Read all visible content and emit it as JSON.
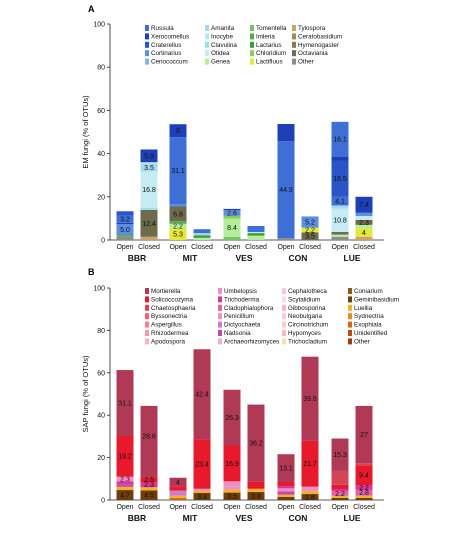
{
  "chart_data": [
    {
      "panel": "A",
      "type": "bar",
      "stacked": true,
      "ylabel": "EM fungi (% of OTUs)",
      "ylim": [
        0,
        100
      ],
      "yticks": [
        0,
        20,
        40,
        60,
        80,
        100
      ],
      "groups": [
        "BBR",
        "MIT",
        "VES",
        "CON",
        "LUE"
      ],
      "bar_categories": [
        "Open",
        "Closed"
      ],
      "legend": [
        {
          "name": "Russula",
          "color": "#3d6fd6"
        },
        {
          "name": "Amanita",
          "color": "#a8d8f0"
        },
        {
          "name": "Tomentella",
          "color": "#77c26a"
        },
        {
          "name": "Tylospora",
          "color": "#c9a56a"
        },
        {
          "name": "Xerocomellus",
          "color": "#1f3fb8"
        },
        {
          "name": "Inocybe",
          "color": "#b6e7f5"
        },
        {
          "name": "Imleria",
          "color": "#58a94e"
        },
        {
          "name": "Ceratobasidium",
          "color": "#a08a5a"
        },
        {
          "name": "Craterellus",
          "color": "#2a55c8"
        },
        {
          "name": "Clavulina",
          "color": "#9adfe8"
        },
        {
          "name": "Lactarius",
          "color": "#3e9a3a"
        },
        {
          "name": "Hymenogaster",
          "color": "#877a55"
        },
        {
          "name": "Cortinarius",
          "color": "#5a8ee0"
        },
        {
          "name": "Otidea",
          "color": "#c5ecf3"
        },
        {
          "name": "Chloridium",
          "color": "#86cc5e"
        },
        {
          "name": "Octaviania",
          "color": "#6e6a4c"
        },
        {
          "name": "Cenococcum",
          "color": "#7fb5e8"
        },
        {
          "name": "Genea",
          "color": "#b5ee9a"
        },
        {
          "name": "Lactifluus",
          "color": "#e3e83a"
        },
        {
          "name": "Other",
          "color": "#8c8c8c"
        }
      ],
      "bars": [
        {
          "group": "BBR",
          "category": "Open",
          "segments": [
            {
              "taxon": "Other",
              "value": 1.5
            },
            {
              "taxon": "Imleria",
              "value": 0.8
            },
            {
              "taxon": "Cortinarius",
              "value": 5.0,
              "label": "5.0"
            },
            {
              "taxon": "Xerocomellus",
              "value": 0.7
            },
            {
              "taxon": "Russula",
              "value": 3.2,
              "label": "3.2"
            },
            {
              "taxon": "Craterellus",
              "value": 2.1
            }
          ]
        },
        {
          "group": "BBR",
          "category": "Closed",
          "segments": [
            {
              "taxon": "Tylospora",
              "value": 1.5
            },
            {
              "taxon": "Octaviania",
              "value": 12.4,
              "label": "12.4"
            },
            {
              "taxon": "Clavulina",
              "value": 1.0
            },
            {
              "taxon": "Otidea",
              "value": 16.8,
              "label": "16.8"
            },
            {
              "taxon": "Amanita",
              "value": 3.5,
              "label": "3.5"
            },
            {
              "taxon": "Inocybe",
              "value": 0.8
            },
            {
              "taxon": "Xerocomellus",
              "value": 5.9,
              "label": "5.9"
            }
          ]
        },
        {
          "group": "MIT",
          "category": "Open",
          "segments": [
            {
              "taxon": "Lactifluus",
              "value": 5.3,
              "label": "5.3"
            },
            {
              "taxon": "Genea",
              "value": 2.2,
              "label": "2.2"
            },
            {
              "taxon": "Imleria",
              "value": 1.2
            },
            {
              "taxon": "Octaviania",
              "value": 6.8,
              "label": "6.8"
            },
            {
              "taxon": "Cortinarius",
              "value": 1.0
            },
            {
              "taxon": "Russula",
              "value": 31.1,
              "label": "31.1"
            },
            {
              "taxon": "Xerocomellus",
              "value": 6.0,
              "label": "6"
            }
          ]
        },
        {
          "group": "MIT",
          "category": "Closed",
          "segments": [
            {
              "taxon": "Genea",
              "value": 1.0
            },
            {
              "taxon": "Lactarius",
              "value": 1.2
            },
            {
              "taxon": "Clavulina",
              "value": 1.0
            },
            {
              "taxon": "Russula",
              "value": 1.8
            }
          ]
        },
        {
          "group": "VES",
          "category": "Open",
          "segments": [
            {
              "taxon": "Tomentella",
              "value": 1.5
            },
            {
              "taxon": "Genea",
              "value": 8.4,
              "label": "8.4"
            },
            {
              "taxon": "Chloridium",
              "value": 1.3
            },
            {
              "taxon": "Cortinarius",
              "value": 2.6,
              "label": "2.6"
            },
            {
              "taxon": "Xerocomellus",
              "value": 0.6
            }
          ]
        },
        {
          "group": "VES",
          "category": "Closed",
          "segments": [
            {
              "taxon": "Genea",
              "value": 2.0
            },
            {
              "taxon": "Lactarius",
              "value": 1.2
            },
            {
              "taxon": "Otidea",
              "value": 0.5
            },
            {
              "taxon": "Russula",
              "value": 2.8
            }
          ]
        },
        {
          "group": "CON",
          "category": "Open",
          "segments": [
            {
              "taxon": "Other",
              "value": 0.8
            },
            {
              "taxon": "Russula",
              "value": 44.9,
              "label": "44.9"
            },
            {
              "taxon": "Xerocomellus",
              "value": 8.0
            }
          ]
        },
        {
          "group": "CON",
          "category": "Closed",
          "segments": [
            {
              "taxon": "Octaviania",
              "value": 3.5,
              "label": "3.5"
            },
            {
              "taxon": "Lactifluus",
              "value": 2.2,
              "label": "2.2"
            },
            {
              "taxon": "Cortinarius",
              "value": 5.2,
              "label": "5.2"
            }
          ]
        },
        {
          "group": "LUE",
          "category": "Open",
          "segments": [
            {
              "taxon": "Other",
              "value": 1.5
            },
            {
              "taxon": "Genea",
              "value": 1.0
            },
            {
              "taxon": "Octaviania",
              "value": 1.2
            },
            {
              "taxon": "Otidea",
              "value": 10.8,
              "label": "10.8"
            },
            {
              "taxon": "Amanita",
              "value": 1.5
            },
            {
              "taxon": "Russula",
              "value": 4.1,
              "label": "4.1"
            },
            {
              "taxon": "Craterellus",
              "value": 16.5,
              "label": "16.5"
            },
            {
              "taxon": "Xerocomellus",
              "value": 2.0
            },
            {
              "taxon": "Russula",
              "value": 16.1,
              "label": "16.1"
            }
          ]
        },
        {
          "group": "LUE",
          "category": "Closed",
          "segments": [
            {
              "taxon": "Tylospora",
              "value": 1.5
            },
            {
              "taxon": "Lactifluus",
              "value": 4.0,
              "label": "4"
            },
            {
              "taxon": "Genea",
              "value": 1.5
            },
            {
              "taxon": "Octaviania",
              "value": 2.3,
              "label": "2.3"
            },
            {
              "taxon": "Otidea",
              "value": 1.8
            },
            {
              "taxon": "Cortinarius",
              "value": 1.5
            },
            {
              "taxon": "Xerocomellus",
              "value": 7.4,
              "label": "7.4"
            }
          ]
        }
      ]
    },
    {
      "panel": "B",
      "type": "bar",
      "stacked": true,
      "ylabel": "SAP fungi (% of OTUs)",
      "ylim": [
        0,
        100
      ],
      "yticks": [
        0,
        20,
        40,
        60,
        80,
        100
      ],
      "groups": [
        "BBR",
        "MIT",
        "VES",
        "CON",
        "LUE"
      ],
      "bar_categories": [
        "Open",
        "Closed"
      ],
      "legend": [
        {
          "name": "Mortierella",
          "color": "#b03a55"
        },
        {
          "name": "Umbelopsis",
          "color": "#f08cc8"
        },
        {
          "name": "Cephalotheca",
          "color": "#f6c7d8"
        },
        {
          "name": "Coniarium",
          "color": "#8a5a10"
        },
        {
          "name": "Solicoccozyma",
          "color": "#e8192c"
        },
        {
          "name": "Trichoderma",
          "color": "#d6369a"
        },
        {
          "name": "Scytalidium",
          "color": "#f9dde5"
        },
        {
          "name": "Geminibasidium",
          "color": "#6e3e0c"
        },
        {
          "name": "Chaetosphaeria",
          "color": "#d64256"
        },
        {
          "name": "Cladophialophora",
          "color": "#e860a8"
        },
        {
          "name": "Gibbosporina",
          "color": "#f4b6c8"
        },
        {
          "name": "Luellia",
          "color": "#f2b12a"
        },
        {
          "name": "Byssonectria",
          "color": "#f06070"
        },
        {
          "name": "Penicillium",
          "color": "#e892c0"
        },
        {
          "name": "Neobulgaria",
          "color": "#f7cdd6"
        },
        {
          "name": "Sydnectria",
          "color": "#e98a1e"
        },
        {
          "name": "Aspergillus",
          "color": "#f28090"
        },
        {
          "name": "Dictyochaeta",
          "color": "#cf7cc8"
        },
        {
          "name": "Circinotrichum",
          "color": "#f6d0cc"
        },
        {
          "name": "Exophiala",
          "color": "#d56a14"
        },
        {
          "name": "Rhizodermea",
          "color": "#f59aa5"
        },
        {
          "name": "Nadsonia",
          "color": "#c14aa8"
        },
        {
          "name": "Hypomyces",
          "color": "#f4c0b6"
        },
        {
          "name": "Unidentified",
          "color": "#b8500c"
        },
        {
          "name": "Apodospora",
          "color": "#f8b8c0"
        },
        {
          "name": "Archaeorhizomyces",
          "color": "#e9b0d8"
        },
        {
          "name": "Trichocladium",
          "color": "#f9ddb0"
        },
        {
          "name": "Other",
          "color": "#9a3c10"
        }
      ],
      "bars": [
        {
          "group": "BBR",
          "category": "Open",
          "segments": [
            {
              "taxon": "Geminibasidium",
              "value": 4.7,
              "label": "4.7"
            },
            {
              "taxon": "Luellia",
              "value": 1.5
            },
            {
              "taxon": "Nadsonia",
              "value": 1.0
            },
            {
              "taxon": "Trichoderma",
              "value": 1.5
            },
            {
              "taxon": "Umbelopsis",
              "value": 2.3,
              "label": "2.3"
            },
            {
              "taxon": "Solicoccozyma",
              "value": 19.2,
              "label": "19.2"
            },
            {
              "taxon": "Mortierella",
              "value": 31.1,
              "label": "31.1"
            }
          ]
        },
        {
          "group": "BBR",
          "category": "Closed",
          "segments": [
            {
              "taxon": "Geminibasidium",
              "value": 4.5,
              "label": "4.5"
            },
            {
              "taxon": "Luellia",
              "value": 1.5
            },
            {
              "taxon": "Trichoderma",
              "value": 2.3,
              "label": "2.3"
            },
            {
              "taxon": "Solicoccozyma",
              "value": 2.5,
              "label": "2.5"
            },
            {
              "taxon": "Mortierella",
              "value": 5.0
            },
            {
              "taxon": "Mortierella",
              "value": 28.6,
              "label": "28.6"
            }
          ]
        },
        {
          "group": "MIT",
          "category": "Open",
          "segments": [
            {
              "taxon": "Exophiala",
              "value": 1.0
            },
            {
              "taxon": "Luellia",
              "value": 1.0
            },
            {
              "taxon": "Dictyochaeta",
              "value": 2.5
            },
            {
              "taxon": "Solicoccozyma",
              "value": 2.0
            },
            {
              "taxon": "Mortierella",
              "value": 4.0,
              "label": "4"
            }
          ]
        },
        {
          "group": "MIT",
          "category": "Closed",
          "segments": [
            {
              "taxon": "Geminibasidium",
              "value": 3.3,
              "label": "3.3"
            },
            {
              "taxon": "Luellia",
              "value": 1.0
            },
            {
              "taxon": "Penicillium",
              "value": 1.0
            },
            {
              "taxon": "Solicoccozyma",
              "value": 23.4,
              "label": "23.4"
            },
            {
              "taxon": "Mortierella",
              "value": 42.4,
              "label": "42.4"
            }
          ]
        },
        {
          "group": "VES",
          "category": "Open",
          "segments": [
            {
              "taxon": "Geminibasidium",
              "value": 3.5,
              "label": "3.5"
            },
            {
              "taxon": "Luellia",
              "value": 1.5
            },
            {
              "taxon": "Umbelopsis",
              "value": 1.5
            },
            {
              "taxon": "Penicillium",
              "value": 2.3
            },
            {
              "taxon": "Solicoccozyma",
              "value": 16.9,
              "label": "16.9"
            },
            {
              "taxon": "Mortierella",
              "value": 26.3,
              "label": "26.3"
            }
          ]
        },
        {
          "group": "VES",
          "category": "Closed",
          "segments": [
            {
              "taxon": "Geminibasidium",
              "value": 3.8,
              "label": "3.8"
            },
            {
              "taxon": "Luellia",
              "value": 1.5
            },
            {
              "taxon": "Solicoccozyma",
              "value": 3.5
            },
            {
              "taxon": "Mortierella",
              "value": 36.2,
              "label": "36.2"
            }
          ]
        },
        {
          "group": "CON",
          "category": "Open",
          "segments": [
            {
              "taxon": "Geminibasidium",
              "value": 1.5
            },
            {
              "taxon": "Luellia",
              "value": 1.0
            },
            {
              "taxon": "Nadsonia",
              "value": 1.5
            },
            {
              "taxon": "Umbelopsis",
              "value": 1.5
            },
            {
              "taxon": "Trichoderma",
              "value": 1.0
            },
            {
              "taxon": "Solicoccozyma",
              "value": 2.0
            },
            {
              "taxon": "Mortierella",
              "value": 13.1,
              "label": "13.1"
            }
          ]
        },
        {
          "group": "CON",
          "category": "Closed",
          "segments": [
            {
              "taxon": "Geminibasidium",
              "value": 2.8,
              "label": "2.8"
            },
            {
              "taxon": "Luellia",
              "value": 1.5
            },
            {
              "taxon": "Umbelopsis",
              "value": 2.0
            },
            {
              "taxon": "Solicoccozyma",
              "value": 21.7,
              "label": "21.7"
            },
            {
              "taxon": "Mortierella",
              "value": 39.6,
              "label": "39.6"
            }
          ]
        },
        {
          "group": "LUE",
          "category": "Open",
          "segments": [
            {
              "taxon": "Geminibasidium",
              "value": 1.0
            },
            {
              "taxon": "Luellia",
              "value": 1.0
            },
            {
              "taxon": "Cladophialophora",
              "value": 2.2,
              "label": "2.2"
            },
            {
              "taxon": "Trichoderma",
              "value": 1.0
            },
            {
              "taxon": "Solicoccozyma",
              "value": 2.0
            },
            {
              "taxon": "Chaetosphaeria",
              "value": 6.5
            },
            {
              "taxon": "Mortierella",
              "value": 15.3,
              "label": "15.3"
            }
          ]
        },
        {
          "group": "LUE",
          "category": "Closed",
          "segments": [
            {
              "taxon": "Geminibasidium",
              "value": 1.0
            },
            {
              "taxon": "Luellia",
              "value": 1.0
            },
            {
              "taxon": "Cladophialophora",
              "value": 2.8,
              "label": "2.8"
            },
            {
              "taxon": "Trichoderma",
              "value": 2.2,
              "label": "2.2"
            },
            {
              "taxon": "Solicoccozyma",
              "value": 9.4,
              "label": "9.4"
            },
            {
              "taxon": "Chaetosphaeria",
              "value": 1.0
            },
            {
              "taxon": "Mortierella",
              "value": 27.0,
              "label": "27"
            }
          ]
        }
      ]
    }
  ]
}
